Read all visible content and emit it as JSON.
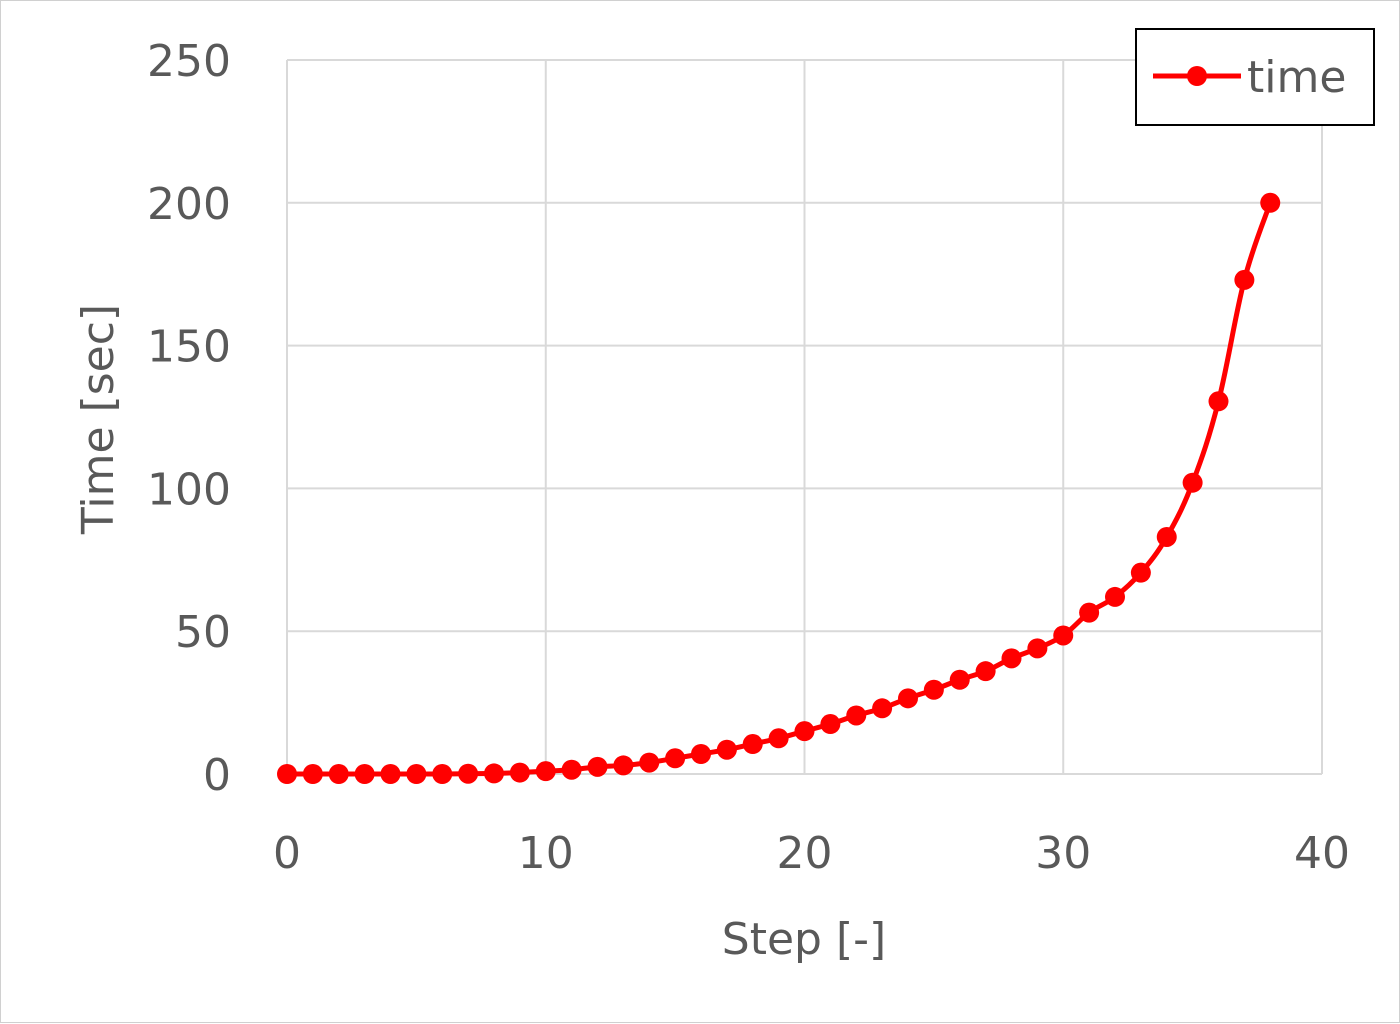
{
  "chart_data": {
    "type": "line",
    "title": "",
    "xlabel": "Step [-]",
    "ylabel": "Time [sec]",
    "xlim": [
      0,
      40
    ],
    "ylim": [
      0,
      250
    ],
    "xticks": [
      "0",
      "10",
      "20",
      "30",
      "40"
    ],
    "yticks": [
      "0",
      "50",
      "100",
      "150",
      "200",
      "250"
    ],
    "grid": true,
    "legend_position": "top-right",
    "series": [
      {
        "name": "time",
        "color": "#ff0000",
        "marker": "circle",
        "x": [
          0,
          1,
          2,
          3,
          4,
          5,
          6,
          7,
          8,
          9,
          10,
          11,
          12,
          13,
          14,
          15,
          16,
          17,
          18,
          19,
          20,
          21,
          22,
          23,
          24,
          25,
          26,
          27,
          28,
          29,
          30,
          31,
          32,
          33,
          34,
          35,
          36,
          37,
          38
        ],
        "y": [
          0,
          0,
          0,
          0,
          0,
          0,
          0,
          0.1,
          0.2,
          0.5,
          1,
          1.5,
          2.5,
          3,
          4,
          5.5,
          7,
          8.5,
          10.5,
          12.5,
          15,
          17.5,
          20.5,
          23,
          26.5,
          29.5,
          33,
          36,
          40.5,
          44,
          48.5,
          56.5,
          62,
          70.5,
          83,
          102,
          130.5,
          173,
          200
        ]
      }
    ]
  }
}
